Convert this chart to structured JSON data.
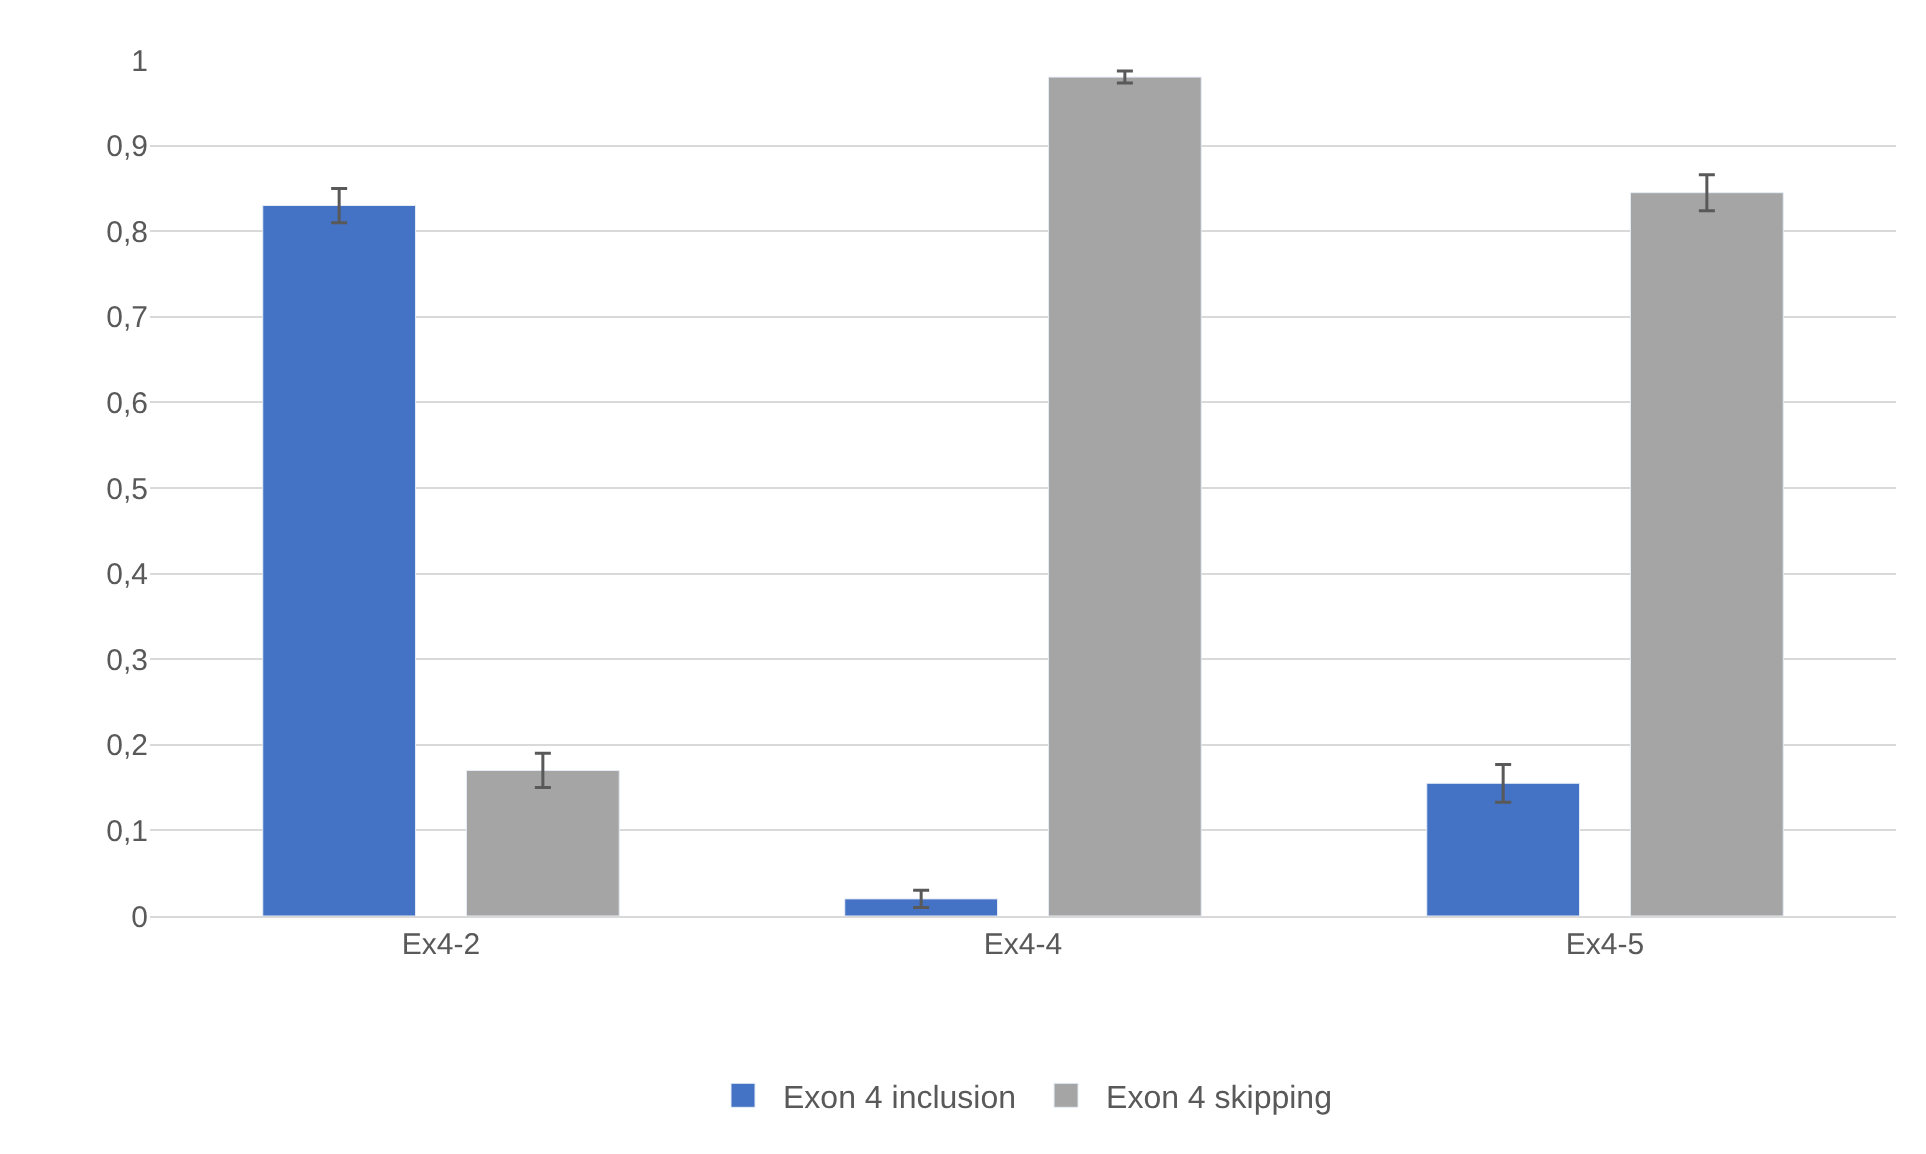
{
  "chart_data": {
    "type": "bar",
    "categories": [
      "Ex4-2",
      "Ex4-4",
      "Ex4-5"
    ],
    "series": [
      {
        "name": "Exon 4 inclusion",
        "color": "#4472c4",
        "values": [
          0.83,
          0.02,
          0.155
        ],
        "errors": [
          0.02,
          0.01,
          0.022
        ]
      },
      {
        "name": "Exon 4 skipping",
        "color": "#a5a5a5",
        "values": [
          0.17,
          0.98,
          0.845
        ],
        "errors": [
          0.02,
          0.007,
          0.021
        ]
      }
    ],
    "ylim": [
      0,
      1
    ],
    "yticks": [
      0,
      {
        "value": 0.1,
        "label": "0,1"
      },
      {
        "value": 0.2,
        "label": "0,2"
      },
      {
        "value": 0.3,
        "label": "0,3"
      },
      {
        "value": 0.4,
        "label": "0,4"
      },
      {
        "value": 0.5,
        "label": "0,5"
      },
      {
        "value": 0.6,
        "label": "0,6"
      },
      {
        "value": 0.7,
        "label": "0,7"
      },
      {
        "value": 0.8,
        "label": "0,8"
      },
      {
        "value": 0.9,
        "label": "0,9"
      },
      1
    ],
    "grid": "y",
    "legend": "bottom"
  }
}
